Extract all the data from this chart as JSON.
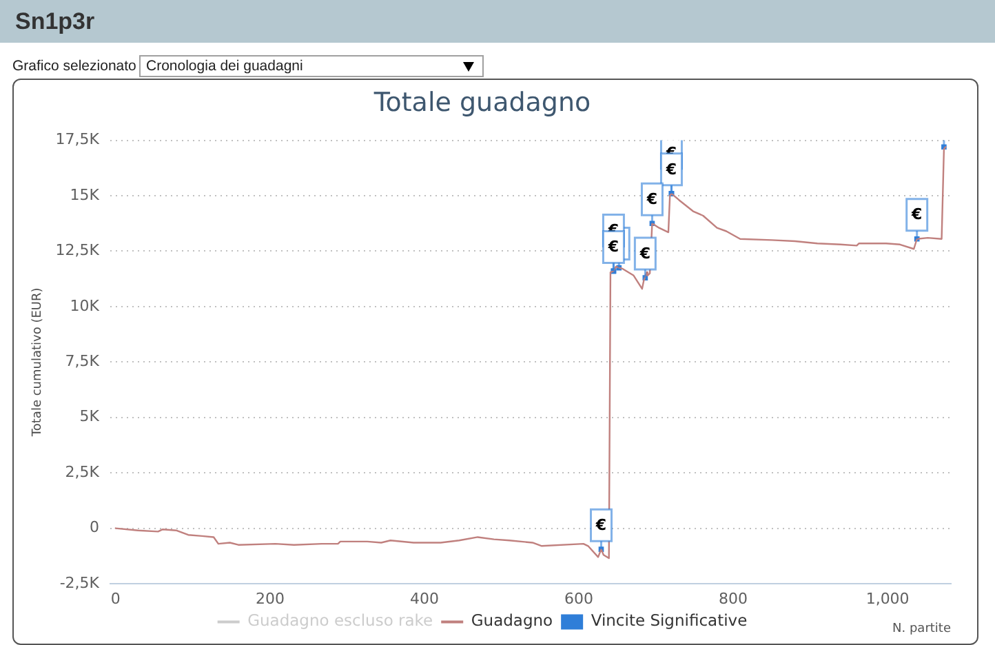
{
  "chart_data": {
    "type": "line",
    "title": "Totale guadagno",
    "xlabel": "N. partite",
    "ylabel": "Totale cumulativo (EUR)",
    "annotations": [
      "Sn1p3r",
      "Grafico selezionato",
      "Cronologia dei guadagni"
    ],
    "xlim": [
      -7,
      1082
    ],
    "xticks": [
      0,
      200,
      400,
      600,
      800,
      {
        "value": 1000,
        "label": "1,000"
      }
    ],
    "ylim": [
      -2500,
      17500
    ],
    "yticks": [
      {
        "value": -2500,
        "label": "-2,5K"
      },
      0,
      {
        "value": 2500,
        "label": "2,5K"
      },
      {
        "value": 5000,
        "label": "5K"
      },
      {
        "value": 7500,
        "label": "7,5K"
      },
      {
        "value": 10000,
        "label": "10K"
      },
      {
        "value": 12500,
        "label": "12,5K"
      },
      {
        "value": 15000,
        "label": "15K"
      },
      {
        "value": 17500,
        "label": "17,5K"
      }
    ],
    "grid": "y",
    "legend": "bottom",
    "series": [
      {
        "name": "Guadagno escluso rake",
        "color": "#cccccc",
        "marker": "none"
      },
      {
        "name": "Guadagno",
        "color": "#c0807e",
        "marker": "none",
        "x": [
          0,
          29,
          55,
          61,
          79,
          94,
          112,
          127,
          133,
          148,
          159,
          207,
          231,
          267,
          288,
          291,
          326,
          344,
          356,
          386,
          421,
          445,
          469,
          490,
          510,
          540,
          552,
          606,
          612,
          625,
          629,
          632,
          639,
          641,
          645,
          648,
          657,
          671,
          682,
          684,
          688,
          689,
          692,
          695,
          704,
          716,
          718,
          720,
          730,
          748,
          761,
          779,
          791,
          809,
          850,
          880,
          909,
          939,
          960,
          963,
          998,
          1016,
          1034,
          1038,
          1052,
          1070,
          1073,
          1075
        ],
        "values": [
          0,
          -100,
          -150,
          -50,
          -100,
          -300,
          -350,
          -400,
          -700,
          -650,
          -750,
          -700,
          -750,
          -700,
          -700,
          -600,
          -600,
          -650,
          -550,
          -650,
          -650,
          -550,
          -400,
          -500,
          -550,
          -650,
          -800,
          -700,
          -800,
          -1300,
          -950,
          -1200,
          -1350,
          11550,
          11600,
          11800,
          11700,
          11400,
          10800,
          11150,
          11550,
          11400,
          11500,
          13750,
          13550,
          13350,
          15000,
          15100,
          14800,
          14300,
          14100,
          13550,
          13400,
          13050,
          13000,
          12950,
          12850,
          12800,
          12750,
          12850,
          12850,
          12800,
          12600,
          13050,
          13100,
          13050,
          17100,
          17200
        ]
      },
      {
        "name": "Vincite Significative",
        "color": "#2f7ed8",
        "type": "scatter",
        "marker": "square",
        "x": [
          629,
          645,
          645,
          652,
          686,
          695,
          720,
          720,
          1038,
          1073
        ],
        "values": [
          -950,
          11600,
          11600,
          11750,
          11300,
          13750,
          15100,
          15100,
          13050,
          17200
        ],
        "value_labels": [
          "€",
          "€",
          "€",
          null,
          "€",
          "€",
          "€",
          "€",
          "€",
          null
        ]
      }
    ]
  }
}
